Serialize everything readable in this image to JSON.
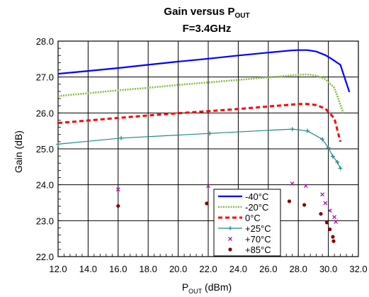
{
  "chart_data": {
    "type": "line",
    "title_line1": "Gain versus P",
    "title_line1_sub": "OUT",
    "title_line2": "F=3.4GHz",
    "xlabel": "P",
    "xlabel_sub": "OUT",
    "xlabel_unit": " (dBm)",
    "ylabel": "Gain (dB)",
    "xlim": [
      12,
      32
    ],
    "ylim": [
      22,
      28
    ],
    "x_ticks": [
      "12.0",
      "14.0",
      "16.0",
      "18.0",
      "20.0",
      "22.0",
      "24.0",
      "26.0",
      "28.0",
      "30.0",
      "32.0"
    ],
    "y_ticks": [
      "22.0",
      "23.0",
      "24.0",
      "25.0",
      "26.0",
      "27.0",
      "28.0"
    ],
    "grid": true,
    "legend_position": "bottom-center",
    "series": [
      {
        "name": "-40°C",
        "color": "#0000ff",
        "style": "solid",
        "marker": "none",
        "x": [
          12.0,
          14.0,
          16.0,
          18.0,
          20.0,
          22.0,
          24.0,
          26.0,
          27.5,
          28.0,
          28.6,
          29.2,
          29.8,
          30.2,
          30.8,
          31.4
        ],
        "y": [
          27.09,
          27.17,
          27.25,
          27.34,
          27.43,
          27.51,
          27.6,
          27.68,
          27.74,
          27.75,
          27.75,
          27.71,
          27.61,
          27.51,
          27.34,
          26.58
        ]
      },
      {
        "name": "-20°C",
        "color": "#88bb44",
        "style": "dotted",
        "marker": "none",
        "x": [
          12.0,
          14.0,
          16.0,
          18.0,
          20.0,
          22.0,
          24.0,
          26.0,
          27.5,
          28.0,
          28.6,
          29.2,
          29.8,
          30.4,
          31.0
        ],
        "y": [
          26.47,
          26.55,
          26.63,
          26.7,
          26.78,
          26.85,
          26.92,
          26.99,
          27.04,
          27.06,
          27.07,
          27.04,
          26.94,
          26.7,
          26.0
        ]
      },
      {
        "name": "0°C",
        "color": "#ff0000",
        "style": "dashed",
        "marker": "none",
        "x": [
          12.0,
          14.0,
          16.0,
          18.0,
          20.0,
          22.0,
          24.0,
          26.0,
          27.5,
          28.0,
          28.6,
          29.2,
          29.8,
          30.4,
          30.8
        ],
        "y": [
          25.72,
          25.79,
          25.86,
          25.93,
          25.99,
          26.05,
          26.11,
          26.18,
          26.23,
          26.25,
          26.25,
          26.22,
          26.12,
          25.85,
          25.2
        ]
      },
      {
        "name": "+25°C",
        "color": "#208880",
        "style": "solid",
        "marker": "plus",
        "x": [
          12.0,
          16.2,
          22.1,
          27.6,
          28.6,
          29.6,
          30.0,
          30.3,
          30.6,
          30.8
        ],
        "y": [
          25.13,
          25.3,
          25.43,
          25.55,
          25.5,
          25.27,
          25.03,
          24.79,
          24.63,
          24.46
        ]
      },
      {
        "name": "+70°C",
        "color": "#a020a0",
        "style": "none",
        "marker": "x",
        "x": [
          16.0,
          22.0,
          27.6,
          28.5,
          29.6,
          29.8,
          30.1,
          30.4,
          30.5
        ],
        "y": [
          23.87,
          23.97,
          24.03,
          23.97,
          23.73,
          23.49,
          23.28,
          23.1,
          22.97
        ]
      },
      {
        "name": "+85°C",
        "color": "#800000",
        "style": "none",
        "marker": "circle",
        "x": [
          16.0,
          21.9,
          27.4,
          28.4,
          29.5,
          29.9,
          30.1,
          30.3,
          30.35
        ],
        "y": [
          23.41,
          23.48,
          23.54,
          23.44,
          23.19,
          22.95,
          22.76,
          22.55,
          22.43
        ]
      }
    ]
  }
}
